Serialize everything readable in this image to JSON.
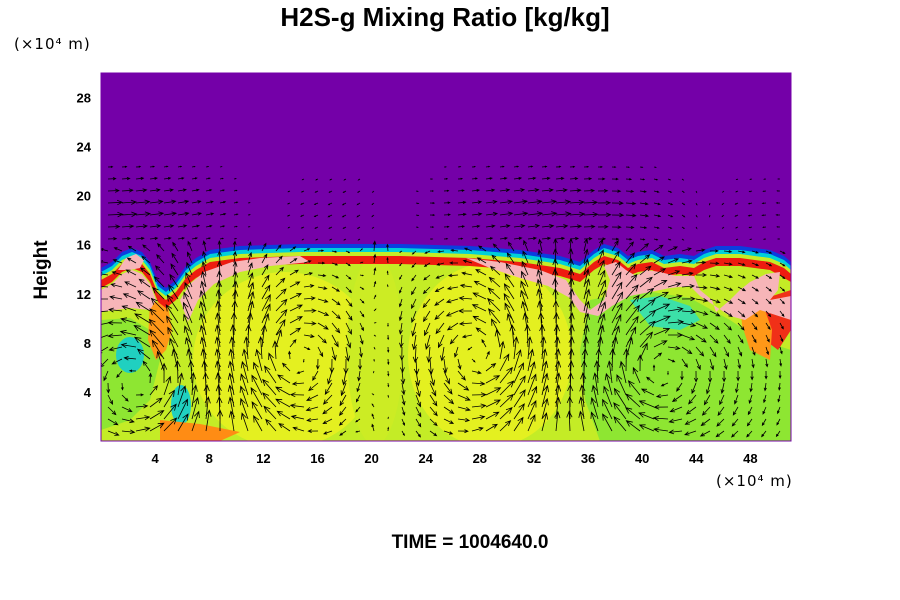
{
  "chart_data": {
    "type": "heatmap",
    "title": "H2S-g Mixing Ratio [kg/kg]",
    "ylabel": "Height",
    "x_unit": "(×10⁴ m)",
    "y_unit": "(×10⁴ m)",
    "x_ticks": [
      4,
      8,
      12,
      16,
      20,
      24,
      28,
      32,
      36,
      40,
      44,
      48
    ],
    "y_ticks": [
      4,
      8,
      12,
      16,
      20,
      24,
      28
    ],
    "xlim": [
      0,
      51
    ],
    "ylim": [
      0,
      30
    ],
    "vectors": true,
    "colors": {
      "background": "#7400a8",
      "pink": "#f7b5b8",
      "yellow": "#d8ee24",
      "green": "#9aea30",
      "cyan": "#00d8c8",
      "blue": "#1060e8",
      "orange": "#ff9c18",
      "red": "#ee1a10"
    }
  },
  "footer": {
    "time": "TIME = 1004640.0"
  }
}
